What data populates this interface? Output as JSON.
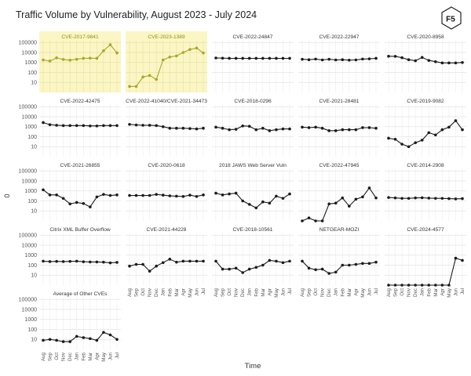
{
  "title": "Traffic Volume by Vulnerability, August 2023 - July 2024",
  "logo_text": "F5",
  "chart_data": {
    "type": "line",
    "facet": "small-multiples",
    "xlabel": "Time",
    "ylabel": "0",
    "y_scale": "log10",
    "y_ticks": [
      10,
      100,
      1000,
      10000,
      100000
    ],
    "y_tick_labels": [
      "10",
      "100",
      "1000",
      "10000",
      "100000"
    ],
    "ylim": [
      1,
      150000
    ],
    "x": [
      "Aug",
      "Sep",
      "Oct",
      "Nov",
      "Dec",
      "Jan",
      "Feb",
      "Mar",
      "Apr",
      "May",
      "Jun",
      "Jul"
    ],
    "grid": true,
    "highlight_fill": "#fbf6c3",
    "highlight_line": "#a7a62d",
    "default_line": "#1a1a1a",
    "series": [
      {
        "name": "CVE-2017-9841",
        "highlight": true,
        "values": [
          1800,
          1400,
          2900,
          2000,
          1700,
          2100,
          2600,
          2700,
          2600,
          15000,
          60000,
          9000
        ]
      },
      {
        "name": "CVE-2023-1389",
        "highlight": true,
        "values": [
          4,
          4,
          35,
          50,
          20,
          1800,
          3500,
          4500,
          10000,
          20000,
          28000,
          9000
        ]
      },
      {
        "name": "CVE-2022-24847",
        "values": [
          2800,
          2700,
          2600,
          2600,
          2600,
          2600,
          2600,
          2600,
          2600,
          2600,
          2600,
          2600
        ]
      },
      {
        "name": "CVE-2022-22947",
        "values": [
          2100,
          1900,
          2200,
          1800,
          2100,
          1800,
          1900,
          1700,
          1800,
          2200,
          2300,
          2600
        ]
      },
      {
        "name": "CVE-2020-8958",
        "values": [
          4200,
          4100,
          3000,
          1900,
          1500,
          3200,
          1600,
          1200,
          900,
          900,
          900,
          1000
        ]
      },
      {
        "name": "CVE-2022-42475",
        "values": [
          2600,
          1600,
          1400,
          1300,
          1300,
          1300,
          1300,
          1200,
          1200,
          1300,
          1300,
          1300
        ]
      },
      {
        "name": "CVE-2022-41040/CVE-2021-34473",
        "values": [
          1700,
          1500,
          1400,
          1400,
          1300,
          1000,
          700,
          700,
          700,
          650,
          600,
          700
        ]
      },
      {
        "name": "CVE-2018-0296",
        "values": [
          900,
          700,
          500,
          550,
          1200,
          1100,
          500,
          700,
          400,
          500,
          600,
          600
        ]
      },
      {
        "name": "CVE-2021-28481",
        "values": [
          900,
          800,
          900,
          700,
          400,
          400,
          500,
          500,
          500,
          800,
          800,
          700
        ]
      },
      {
        "name": "CVE-2019-9082",
        "values": [
          70,
          55,
          18,
          10,
          25,
          45,
          250,
          150,
          500,
          900,
          4000,
          500
        ]
      },
      {
        "name": "CVE-2021-26855",
        "values": [
          1300,
          400,
          400,
          180,
          50,
          70,
          55,
          25,
          250,
          450,
          350,
          400
        ]
      },
      {
        "name": "CVE-2020-0618",
        "values": [
          350,
          350,
          350,
          350,
          450,
          380,
          320,
          300,
          280,
          380,
          280,
          400
        ]
      },
      {
        "name": "2018 JAWS Web Server Vuln",
        "values": [
          600,
          400,
          500,
          600,
          100,
          45,
          20,
          80,
          60,
          300,
          180,
          500
        ]
      },
      {
        "name": "CVE-2022-47945",
        "values": [
          1,
          2,
          1,
          1,
          50,
          60,
          200,
          30,
          150,
          250,
          2000,
          200
        ]
      },
      {
        "name": "CVE-2014-2908",
        "values": [
          220,
          200,
          180,
          180,
          200,
          210,
          190,
          180,
          180,
          170,
          160,
          170
        ]
      },
      {
        "name": "Citrix XML Buffer Overflow",
        "values": [
          250,
          230,
          240,
          230,
          240,
          250,
          220,
          210,
          210,
          200,
          170,
          190
        ]
      },
      {
        "name": "CVE-2021-44228",
        "values": [
          80,
          120,
          120,
          25,
          80,
          180,
          400,
          200,
          250,
          250,
          250,
          250
        ]
      },
      {
        "name": "CVE-2018-10561",
        "values": [
          250,
          40,
          40,
          50,
          18,
          40,
          60,
          100,
          300,
          250,
          180,
          250
        ]
      },
      {
        "name": "NETGEAR-MOZI",
        "values": [
          250,
          50,
          35,
          40,
          15,
          20,
          100,
          100,
          120,
          150,
          150,
          200
        ]
      },
      {
        "name": "CVE-2024-4577",
        "values": [
          1,
          1,
          1,
          1,
          1,
          1,
          1,
          1,
          1,
          1,
          500,
          300
        ]
      },
      {
        "name": "Average of Other CVEs",
        "values": [
          8,
          10,
          8,
          6,
          6,
          20,
          15,
          12,
          8,
          50,
          28,
          10
        ]
      }
    ]
  }
}
